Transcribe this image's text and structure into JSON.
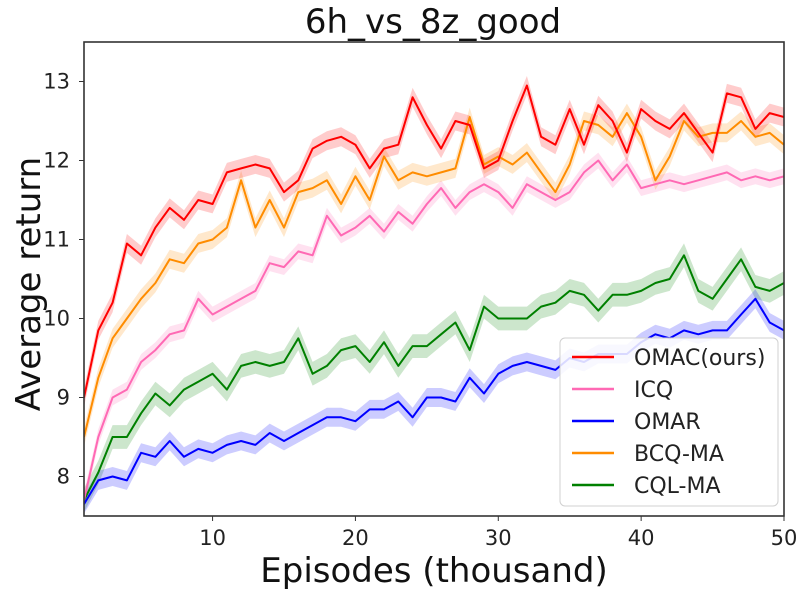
{
  "chart_data": {
    "type": "line",
    "title": "6h_vs_8z_good",
    "xlabel": "Episodes (thousand)",
    "ylabel": "Average return",
    "xlim": [
      1,
      50
    ],
    "ylim": [
      7.5,
      13.5
    ],
    "xticks": [
      10,
      20,
      30,
      40,
      50
    ],
    "yticks": [
      8,
      9,
      10,
      11,
      12,
      13
    ],
    "grid": false,
    "legend_position": "bottom-right",
    "x": [
      1,
      2,
      3,
      4,
      5,
      6,
      7,
      8,
      9,
      10,
      11,
      12,
      13,
      14,
      15,
      16,
      17,
      18,
      19,
      20,
      21,
      22,
      23,
      24,
      25,
      26,
      27,
      28,
      29,
      30,
      31,
      32,
      33,
      34,
      35,
      36,
      37,
      38,
      39,
      40,
      41,
      42,
      43,
      44,
      45,
      46,
      47,
      48,
      49,
      50
    ],
    "series": [
      {
        "name": "OMAC(ours)",
        "color": "#ff0000",
        "values": [
          9.0,
          9.85,
          10.2,
          10.95,
          10.8,
          11.15,
          11.4,
          11.25,
          11.5,
          11.45,
          11.85,
          11.9,
          11.95,
          11.9,
          11.6,
          11.75,
          12.15,
          12.25,
          12.3,
          12.2,
          11.9,
          12.15,
          12.2,
          12.8,
          12.45,
          12.15,
          12.5,
          12.45,
          11.9,
          12.0,
          12.5,
          12.95,
          12.3,
          12.2,
          12.65,
          12.2,
          12.7,
          12.5,
          12.1,
          12.65,
          12.5,
          12.4,
          12.6,
          12.35,
          12.1,
          12.85,
          12.8,
          12.4,
          12.6,
          12.55
        ],
        "band": 0.12
      },
      {
        "name": "ICQ",
        "color": "#ff69b4",
        "values": [
          7.7,
          8.5,
          9.0,
          9.1,
          9.45,
          9.6,
          9.8,
          9.85,
          10.25,
          10.05,
          10.15,
          10.25,
          10.35,
          10.7,
          10.65,
          10.85,
          10.8,
          11.3,
          11.05,
          11.15,
          11.3,
          11.1,
          11.35,
          11.2,
          11.45,
          11.65,
          11.4,
          11.6,
          11.7,
          11.6,
          11.4,
          11.7,
          11.6,
          11.5,
          11.6,
          11.85,
          12.0,
          11.75,
          11.95,
          11.65,
          11.7,
          11.75,
          11.7,
          11.75,
          11.8,
          11.85,
          11.75,
          11.8,
          11.75,
          11.8
        ],
        "band": 0.1
      },
      {
        "name": "OMAR",
        "color": "#0000ff",
        "values": [
          7.65,
          7.95,
          8.0,
          7.95,
          8.3,
          8.25,
          8.45,
          8.25,
          8.35,
          8.3,
          8.4,
          8.45,
          8.4,
          8.55,
          8.45,
          8.55,
          8.65,
          8.75,
          8.75,
          8.7,
          8.85,
          8.85,
          8.95,
          8.75,
          9.0,
          9.0,
          8.95,
          9.25,
          9.05,
          9.3,
          9.4,
          9.45,
          9.4,
          9.35,
          9.5,
          9.45,
          9.55,
          9.55,
          9.55,
          9.7,
          9.8,
          9.75,
          9.85,
          9.8,
          9.85,
          9.85,
          10.05,
          10.25,
          9.95,
          9.85
        ],
        "band": 0.12
      },
      {
        "name": "BCQ-MA",
        "color": "#ff8c00",
        "values": [
          8.5,
          9.25,
          9.75,
          10.0,
          10.25,
          10.45,
          10.75,
          10.7,
          10.95,
          11.0,
          11.15,
          11.75,
          11.15,
          11.5,
          11.15,
          11.6,
          11.65,
          11.75,
          11.45,
          11.8,
          11.5,
          12.05,
          11.75,
          11.85,
          11.8,
          11.85,
          11.9,
          12.55,
          11.95,
          12.05,
          11.95,
          12.1,
          11.85,
          11.6,
          11.95,
          12.5,
          12.45,
          12.3,
          12.6,
          12.3,
          11.75,
          12.05,
          12.5,
          12.3,
          12.35,
          12.35,
          12.5,
          12.3,
          12.35,
          12.2
        ],
        "band": 0.12
      },
      {
        "name": "CQL-MA",
        "color": "#008000",
        "values": [
          7.7,
          8.05,
          8.5,
          8.5,
          8.8,
          9.05,
          8.9,
          9.1,
          9.2,
          9.3,
          9.1,
          9.4,
          9.45,
          9.4,
          9.45,
          9.75,
          9.3,
          9.4,
          9.6,
          9.65,
          9.45,
          9.7,
          9.4,
          9.65,
          9.65,
          9.8,
          9.95,
          9.6,
          10.15,
          10.0,
          10.0,
          10.0,
          10.15,
          10.2,
          10.35,
          10.3,
          10.1,
          10.3,
          10.3,
          10.35,
          10.45,
          10.5,
          10.8,
          10.35,
          10.25,
          10.5,
          10.75,
          10.4,
          10.35,
          10.45
        ],
        "band": 0.15
      }
    ]
  }
}
